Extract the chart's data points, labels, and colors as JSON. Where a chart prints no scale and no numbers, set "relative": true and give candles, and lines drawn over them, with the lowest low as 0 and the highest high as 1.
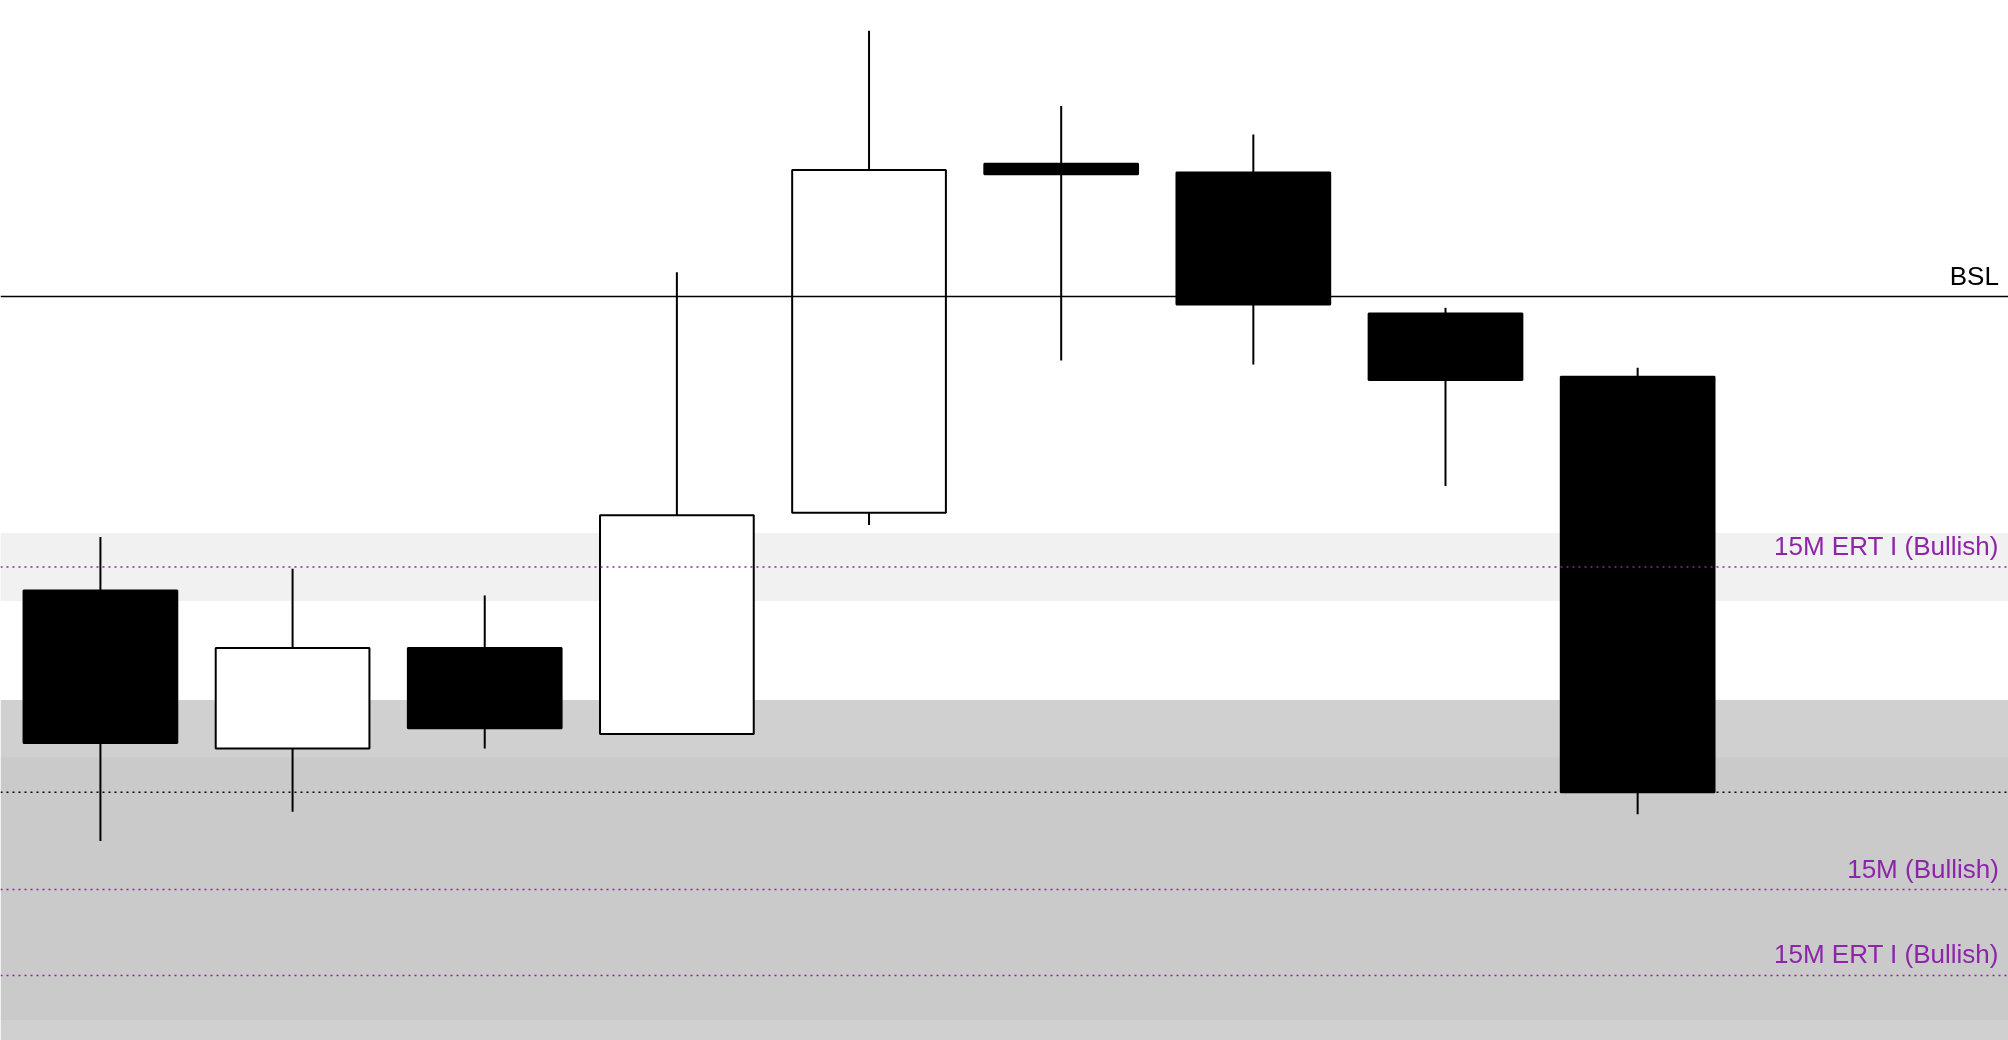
{
  "chart_data": {
    "type": "candlestick",
    "relative": true,
    "tick_labels": false,
    "grid": false,
    "categories": [
      null,
      null,
      null,
      null,
      null,
      null,
      null,
      null,
      null
    ],
    "ohlc": [
      [
        0.309,
        0.375,
        0,
        0.121
      ],
      [
        0.114,
        0.336,
        0.036,
        0.238
      ],
      [
        0.238,
        0.303,
        0.114,
        0.139
      ],
      [
        0.132,
        0.702,
        0.132,
        0.402
      ],
      [
        0.405,
        1,
        0.39,
        0.828
      ],
      [
        0.836,
        0.907,
        0.593,
        0.823
      ],
      [
        0.825,
        0.872,
        0.588,
        0.662
      ],
      [
        0.651,
        0.658,
        0.438,
        0.569
      ],
      [
        0.573,
        0.584,
        0.033,
        0.06
      ]
    ],
    "ref_lines": [
      {
        "axis": "y",
        "value": 0.672,
        "label": "BSL",
        "color": "#000000",
        "line_style": "solid"
      },
      {
        "axis": "y",
        "value": 0.338,
        "label": "15M ERT I (Bullish)",
        "color": "#8e24aa",
        "line_style": "dotted"
      },
      {
        "axis": "y",
        "value": 0.06,
        "color": "#000000",
        "line_style": "dotted"
      },
      {
        "axis": "y",
        "value": -0.06,
        "label": "15M (Bullish)",
        "color": "#8e24aa",
        "line_style": "dotted"
      },
      {
        "axis": "y",
        "value": -0.166,
        "label": "15M ERT I (Bullish)",
        "color": "#8e24aa",
        "line_style": "dotted"
      }
    ],
    "bands": [
      {
        "axis": "y",
        "from": 0.296,
        "to": 0.38,
        "color": "#e6e6e6"
      },
      {
        "axis": "y",
        "from": -0.221,
        "to": 0.103,
        "color": "#e6e6e6"
      },
      {
        "axis": "y",
        "from": -0.246,
        "to": 0.174,
        "color": "#a9a9a9"
      }
    ]
  }
}
